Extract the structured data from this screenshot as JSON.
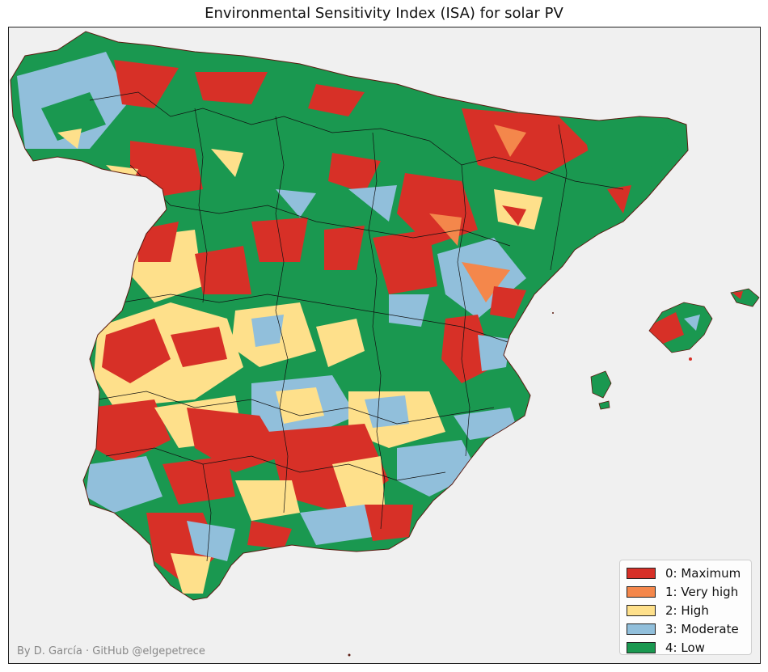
{
  "title": "Environmental Sensitivity Index (ISA) for solar PV",
  "legend": {
    "items": [
      {
        "label": "0: Maximum",
        "color": "#d73027"
      },
      {
        "label": "1: Very high",
        "color": "#f4874b"
      },
      {
        "label": "2: High",
        "color": "#fee08b"
      },
      {
        "label": "3: Moderate",
        "color": "#91bfdb"
      },
      {
        "label": "4: Low",
        "color": "#1a9850"
      }
    ]
  },
  "credit": "By D. García · GitHub @elgepetrece",
  "colors": {
    "background": "#f0f0f0",
    "border": "#222222"
  }
}
